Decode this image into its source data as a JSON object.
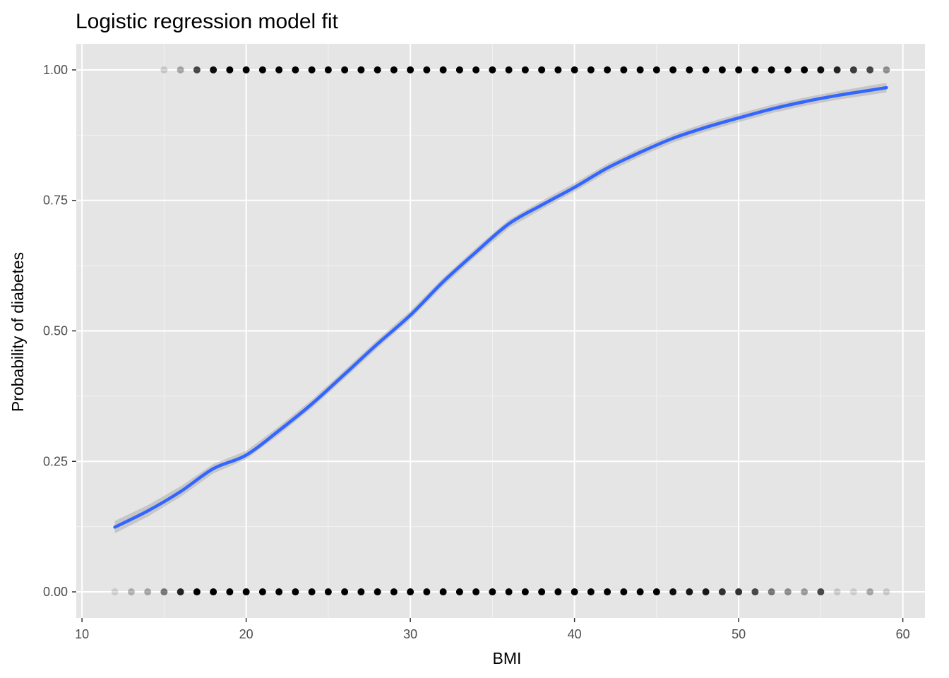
{
  "chart_data": {
    "type": "scatter",
    "title": "Logistic regression model fit",
    "xlabel": "BMI",
    "ylabel": "Probability of diabetes",
    "xlim": [
      9.65,
      61.35
    ],
    "ylim": [
      -0.05,
      1.05
    ],
    "x_ticks": [
      10,
      20,
      30,
      40,
      50,
      60
    ],
    "y_ticks": [
      0,
      0.25,
      0.5,
      0.75,
      1
    ],
    "x_tick_labels": [
      "10",
      "20",
      "30",
      "40",
      "50",
      "60"
    ],
    "y_tick_labels": [
      "0.00",
      "0.25",
      "0.50",
      "0.75",
      "1.00"
    ],
    "grid": true,
    "points": {
      "y1": [
        {
          "x": 15,
          "a": 0.15
        },
        {
          "x": 16,
          "a": 0.3
        },
        {
          "x": 17,
          "a": 0.7
        },
        {
          "x": 18,
          "a": 0.95
        },
        {
          "x": 19,
          "a": 1
        },
        {
          "x": 20,
          "a": 1
        },
        {
          "x": 21,
          "a": 1
        },
        {
          "x": 22,
          "a": 1
        },
        {
          "x": 23,
          "a": 1
        },
        {
          "x": 24,
          "a": 1
        },
        {
          "x": 25,
          "a": 1
        },
        {
          "x": 26,
          "a": 1
        },
        {
          "x": 27,
          "a": 1
        },
        {
          "x": 28,
          "a": 1
        },
        {
          "x": 29,
          "a": 1
        },
        {
          "x": 30,
          "a": 1
        },
        {
          "x": 31,
          "a": 1
        },
        {
          "x": 32,
          "a": 1
        },
        {
          "x": 33,
          "a": 1
        },
        {
          "x": 34,
          "a": 1
        },
        {
          "x": 35,
          "a": 1
        },
        {
          "x": 36,
          "a": 1
        },
        {
          "x": 37,
          "a": 1
        },
        {
          "x": 38,
          "a": 1
        },
        {
          "x": 39,
          "a": 1
        },
        {
          "x": 40,
          "a": 1
        },
        {
          "x": 41,
          "a": 1
        },
        {
          "x": 42,
          "a": 1
        },
        {
          "x": 43,
          "a": 1
        },
        {
          "x": 44,
          "a": 1
        },
        {
          "x": 45,
          "a": 1
        },
        {
          "x": 46,
          "a": 1
        },
        {
          "x": 47,
          "a": 1
        },
        {
          "x": 48,
          "a": 1
        },
        {
          "x": 49,
          "a": 1
        },
        {
          "x": 50,
          "a": 1
        },
        {
          "x": 51,
          "a": 1
        },
        {
          "x": 52,
          "a": 1
        },
        {
          "x": 53,
          "a": 1
        },
        {
          "x": 54,
          "a": 1
        },
        {
          "x": 55,
          "a": 0.95
        },
        {
          "x": 56,
          "a": 0.85
        },
        {
          "x": 57,
          "a": 0.75
        },
        {
          "x": 58,
          "a": 0.7
        },
        {
          "x": 59,
          "a": 0.4
        }
      ],
      "y0": [
        {
          "x": 12,
          "a": 0.12
        },
        {
          "x": 13,
          "a": 0.25
        },
        {
          "x": 14,
          "a": 0.3
        },
        {
          "x": 15,
          "a": 0.5
        },
        {
          "x": 16,
          "a": 0.85
        },
        {
          "x": 17,
          "a": 1
        },
        {
          "x": 18,
          "a": 1
        },
        {
          "x": 19,
          "a": 1
        },
        {
          "x": 20,
          "a": 1
        },
        {
          "x": 21,
          "a": 1
        },
        {
          "x": 22,
          "a": 1
        },
        {
          "x": 23,
          "a": 1
        },
        {
          "x": 24,
          "a": 1
        },
        {
          "x": 25,
          "a": 1
        },
        {
          "x": 26,
          "a": 1
        },
        {
          "x": 27,
          "a": 1
        },
        {
          "x": 28,
          "a": 1
        },
        {
          "x": 29,
          "a": 1
        },
        {
          "x": 30,
          "a": 1
        },
        {
          "x": 31,
          "a": 1
        },
        {
          "x": 32,
          "a": 1
        },
        {
          "x": 33,
          "a": 1
        },
        {
          "x": 34,
          "a": 1
        },
        {
          "x": 35,
          "a": 1
        },
        {
          "x": 36,
          "a": 1
        },
        {
          "x": 37,
          "a": 1
        },
        {
          "x": 38,
          "a": 1
        },
        {
          "x": 39,
          "a": 1
        },
        {
          "x": 40,
          "a": 1
        },
        {
          "x": 41,
          "a": 1
        },
        {
          "x": 42,
          "a": 1
        },
        {
          "x": 43,
          "a": 1
        },
        {
          "x": 44,
          "a": 1
        },
        {
          "x": 45,
          "a": 1
        },
        {
          "x": 46,
          "a": 0.95
        },
        {
          "x": 47,
          "a": 0.9
        },
        {
          "x": 48,
          "a": 0.9
        },
        {
          "x": 49,
          "a": 0.8
        },
        {
          "x": 50,
          "a": 0.8
        },
        {
          "x": 51,
          "a": 0.7
        },
        {
          "x": 52,
          "a": 0.5
        },
        {
          "x": 53,
          "a": 0.4
        },
        {
          "x": 54,
          "a": 0.35
        },
        {
          "x": 55,
          "a": 0.7
        },
        {
          "x": 56,
          "a": 0.15
        },
        {
          "x": 57,
          "a": 0.12
        },
        {
          "x": 58,
          "a": 0.3
        },
        {
          "x": 59,
          "a": 0.15
        }
      ]
    },
    "fit_curve": {
      "x": [
        12,
        14,
        16,
        18,
        20,
        22,
        24,
        26,
        28,
        30,
        32,
        34,
        36,
        38,
        40,
        42,
        44,
        46,
        48,
        50,
        52,
        54,
        56,
        58,
        59
      ],
      "y": [
        0.124,
        0.155,
        0.192,
        0.236,
        0.262,
        0.309,
        0.36,
        0.417,
        0.475,
        0.53,
        0.594,
        0.651,
        0.705,
        0.741,
        0.775,
        0.812,
        0.842,
        0.869,
        0.89,
        0.908,
        0.925,
        0.939,
        0.951,
        0.961,
        0.966
      ],
      "ci_halfwidth": [
        0.012,
        0.011,
        0.01,
        0.009,
        0.008,
        0.008,
        0.008,
        0.008,
        0.008,
        0.008,
        0.008,
        0.008,
        0.008,
        0.008,
        0.008,
        0.008,
        0.008,
        0.008,
        0.008,
        0.008,
        0.008,
        0.008,
        0.008,
        0.009,
        0.009
      ]
    },
    "colors": {
      "panel": "#e5e5e5",
      "grid_major": "#ffffff",
      "grid_minor": "#f2f2f2",
      "point": "#000000",
      "line": "#3366ff",
      "ribbon": "#999999",
      "tick": "#333333"
    }
  }
}
